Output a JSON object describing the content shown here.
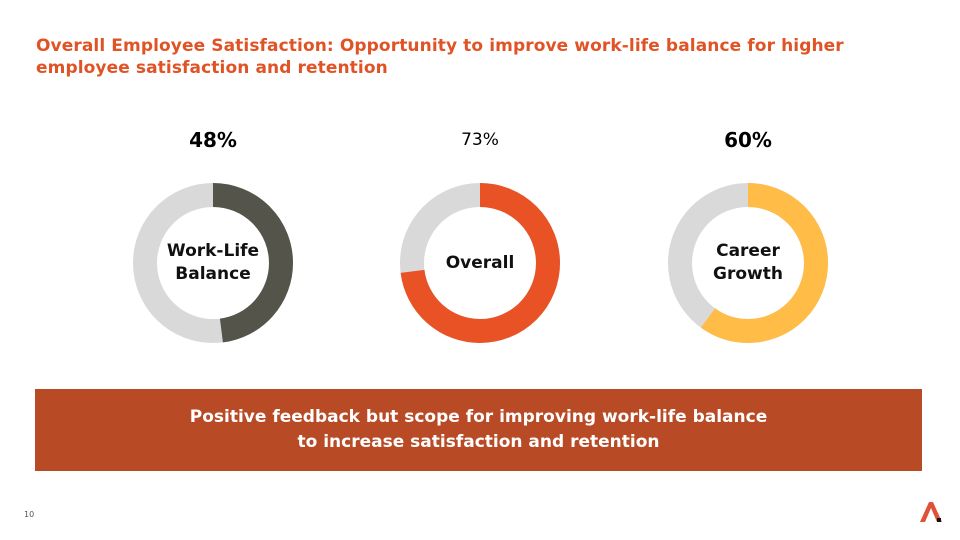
{
  "slide": {
    "title": "Overall Employee Satisfaction: Opportunity to improve work-life balance for higher employee satisfaction and retention",
    "page_number": "10",
    "banner_text": "Positive feedback but scope for improving work-life balance\nto increase satisfaction and retention"
  },
  "colors": {
    "title": "#e05325",
    "banner": "#b84a25",
    "track": "#d9d9d9",
    "logo": "#e0513a"
  },
  "chart_data": [
    {
      "type": "pie",
      "label": "Work-Life\nBalance",
      "percent_label": "48%",
      "value": 48,
      "remainder": 52,
      "color": "#54544a"
    },
    {
      "type": "pie",
      "label": "Overall",
      "percent_label": "73%",
      "value": 73,
      "remainder": 27,
      "color": "#e85225"
    },
    {
      "type": "pie",
      "label": "Career\nGrowth",
      "percent_label": "60%",
      "value": 60,
      "remainder": 40,
      "color": "#ffbc47"
    }
  ]
}
